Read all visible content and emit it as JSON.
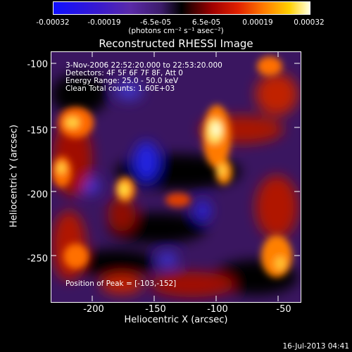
{
  "colorbar": {
    "ticks": [
      "-0.00032",
      "-0.00019",
      "-6.5e-05",
      "6.5e-05",
      "0.00019",
      "0.00032"
    ],
    "units": "(photons cm⁻² s⁻¹ asec⁻²)",
    "colors": {
      "min": "#1010ff",
      "zero": "#000000",
      "max": "#ffffe0"
    }
  },
  "title": "Reconstructed RHESSI Image",
  "info": {
    "time": "3-Nov-2006 22:52:20.000 to 22:53:20.000",
    "detectors": "Detectors: 4F 5F 6F 7F 8F, Att 0",
    "energy": "Energy Range: 25.0 - 50.0 keV",
    "clean": "Clean    Total counts: 1.60E+03",
    "peak": "Position of Peak = [-103,-152]"
  },
  "axes": {
    "xlabel": "Heliocentric X (arcsec)",
    "ylabel": "Heliocentric Y (arcsec)",
    "xticks": [
      "-200",
      "-150",
      "-100",
      "-50"
    ],
    "yticks": [
      "-100",
      "-150",
      "-200",
      "-250"
    ]
  },
  "timestamp": "16-Jul-2013 04:41"
}
